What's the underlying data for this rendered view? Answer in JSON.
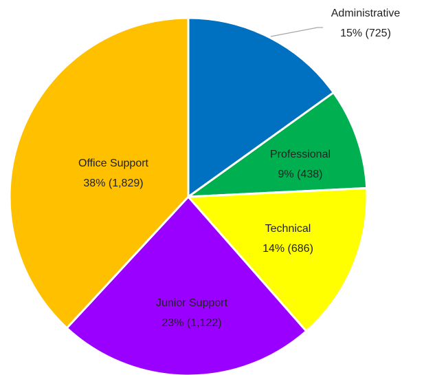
{
  "chart_data": {
    "type": "pie",
    "categories": [
      "Administrative",
      "Professional",
      "Technical",
      "Junior Support",
      "Office Support"
    ],
    "values": [
      725,
      438,
      686,
      1122,
      1829
    ],
    "value_labels": [
      "15% (725)",
      "9% (438)",
      "14% (686)",
      "23% (1,122)",
      "38% (1,829)"
    ],
    "colors": [
      "#0070c0",
      "#00b050",
      "#ffff00",
      "#9900ff",
      "#ffc000"
    ]
  }
}
